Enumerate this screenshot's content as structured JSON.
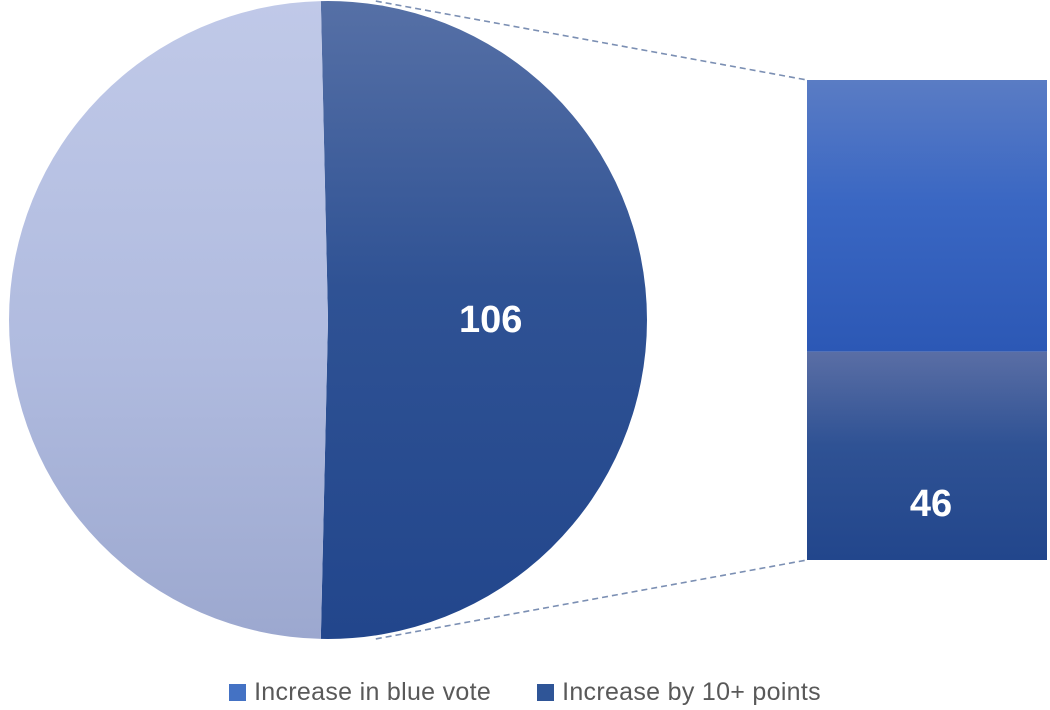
{
  "chart_data": {
    "type": "bar-of-pie",
    "pie": {
      "slices": [
        {
          "value": 106,
          "label": "106",
          "color": "#2f5294"
        },
        {
          "value": 103,
          "label": "",
          "color": "#b0bbdf"
        }
      ]
    },
    "bar": {
      "segments": [
        {
          "value": 60,
          "label": "",
          "color": "#3a67c3"
        },
        {
          "value": 46,
          "label": "46",
          "color": "#2b4f91"
        }
      ]
    },
    "legend": [
      {
        "name": "Increase in blue vote",
        "color": "#4472c4"
      },
      {
        "name": "Increase by 10+ points",
        "color": "#2f5597"
      }
    ],
    "legend_position": "bottom"
  }
}
